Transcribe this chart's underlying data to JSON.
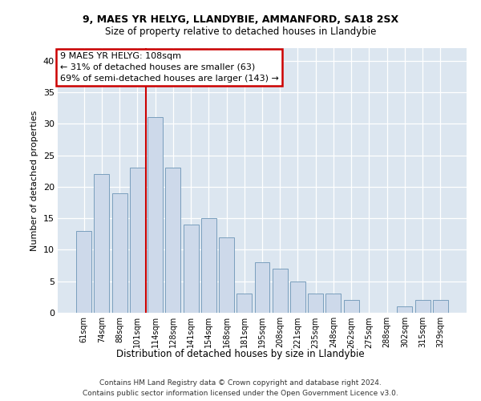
{
  "title1": "9, MAES YR HELYG, LLANDYBIE, AMMANFORD, SA18 2SX",
  "title2": "Size of property relative to detached houses in Llandybie",
  "xlabel": "Distribution of detached houses by size in Llandybie",
  "ylabel": "Number of detached properties",
  "categories": [
    "61sqm",
    "74sqm",
    "88sqm",
    "101sqm",
    "114sqm",
    "128sqm",
    "141sqm",
    "154sqm",
    "168sqm",
    "181sqm",
    "195sqm",
    "208sqm",
    "221sqm",
    "235sqm",
    "248sqm",
    "262sqm",
    "275sqm",
    "288sqm",
    "302sqm",
    "315sqm",
    "329sqm"
  ],
  "values": [
    13,
    22,
    19,
    23,
    31,
    23,
    14,
    15,
    12,
    3,
    8,
    7,
    5,
    3,
    3,
    2,
    0,
    0,
    1,
    2,
    2
  ],
  "bar_color": "#cdd9ea",
  "bar_edge_color": "#7a9fbd",
  "vline_x": 3.5,
  "vline_color": "#cc0000",
  "annotation_lines": [
    "9 MAES YR HELYG: 108sqm",
    "← 31% of detached houses are smaller (63)",
    "69% of semi-detached houses are larger (143) →"
  ],
  "annotation_box_facecolor": "#ffffff",
  "annotation_box_edgecolor": "#cc0000",
  "ylim": [
    0,
    42
  ],
  "yticks": [
    0,
    5,
    10,
    15,
    20,
    25,
    30,
    35,
    40
  ],
  "bg_color": "#dce6f0",
  "footer1": "Contains HM Land Registry data © Crown copyright and database right 2024.",
  "footer2": "Contains public sector information licensed under the Open Government Licence v3.0."
}
